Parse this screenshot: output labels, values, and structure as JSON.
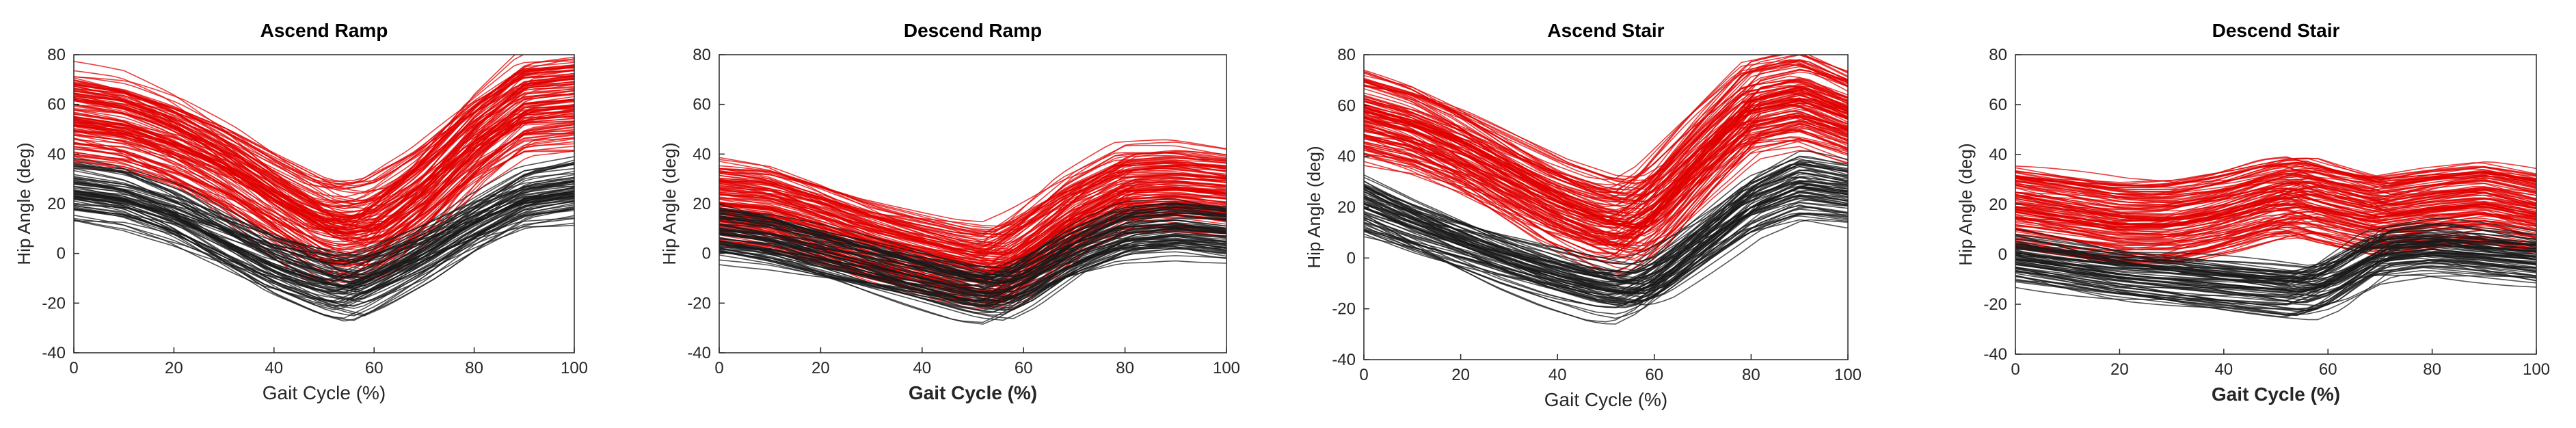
{
  "chart_data": [
    {
      "type": "line",
      "title": "Ascend Ramp",
      "xlabel": "Gait Cycle (%)",
      "ylabel": "Hip Angle (deg)",
      "xlim": [
        0,
        100
      ],
      "ylim": [
        -40,
        80
      ],
      "xticks": [
        0,
        20,
        40,
        60,
        80,
        100
      ],
      "yticks": [
        -40,
        -20,
        0,
        20,
        40,
        60,
        80
      ],
      "grid": false,
      "x": [
        0,
        10,
        20,
        30,
        40,
        50,
        55,
        60,
        70,
        80,
        90,
        100
      ],
      "series": [
        {
          "color": "#e00000",
          "values": [
            55,
            52,
            45,
            35,
            22,
            10,
            8,
            10,
            25,
            45,
            60,
            62
          ]
        },
        {
          "color": "#1a1a1a",
          "values": [
            25,
            22,
            15,
            5,
            -5,
            -12,
            -14,
            -10,
            0,
            12,
            22,
            25
          ]
        }
      ]
    },
    {
      "type": "line",
      "title": "Descend Ramp",
      "xlabel": "Gait Cycle (%)",
      "ylabel": "Hip Angle (deg)",
      "xlim": [
        0,
        100
      ],
      "ylim": [
        -40,
        80
      ],
      "xticks": [
        0,
        20,
        40,
        60,
        80,
        100
      ],
      "yticks": [
        -40,
        -20,
        0,
        20,
        40,
        60,
        80
      ],
      "grid": false,
      "x": [
        0,
        10,
        20,
        30,
        40,
        50,
        55,
        60,
        70,
        80,
        90,
        100
      ],
      "series": [
        {
          "color": "#e00000",
          "values": [
            20,
            18,
            12,
            5,
            0,
            -5,
            -6,
            0,
            15,
            25,
            26,
            24
          ]
        },
        {
          "color": "#1a1a1a",
          "values": [
            8,
            5,
            0,
            -5,
            -10,
            -15,
            -16,
            -12,
            0,
            8,
            10,
            8
          ]
        }
      ]
    },
    {
      "type": "line",
      "title": "Ascend Stair",
      "xlabel": "Gait Cycle (%)",
      "ylabel": "Hip Angle (deg)",
      "xlim": [
        0,
        100
      ],
      "ylim": [
        -40,
        80
      ],
      "xticks": [
        0,
        20,
        40,
        60,
        80,
        100
      ],
      "yticks": [
        -40,
        -20,
        0,
        20,
        40,
        60,
        80
      ],
      "grid": false,
      "x": [
        0,
        10,
        20,
        30,
        40,
        50,
        55,
        60,
        70,
        80,
        90,
        100
      ],
      "series": [
        {
          "color": "#e00000",
          "values": [
            55,
            50,
            42,
            32,
            22,
            15,
            14,
            20,
            40,
            58,
            62,
            55
          ]
        },
        {
          "color": "#1a1a1a",
          "values": [
            20,
            12,
            5,
            -2,
            -8,
            -13,
            -14,
            -10,
            5,
            20,
            28,
            25
          ]
        }
      ]
    },
    {
      "type": "line",
      "title": "Descend Stair",
      "xlabel": "Gait Cycle (%)",
      "ylabel": "Hip Angle (deg)",
      "xlim": [
        0,
        100
      ],
      "ylim": [
        -40,
        80
      ],
      "xticks": [
        0,
        20,
        40,
        60,
        80,
        100
      ],
      "yticks": [
        -40,
        -20,
        0,
        20,
        40,
        60,
        80
      ],
      "grid": false,
      "x": [
        0,
        10,
        20,
        30,
        40,
        50,
        55,
        60,
        70,
        80,
        90,
        100
      ],
      "series": [
        {
          "color": "#e00000",
          "values": [
            18,
            15,
            12,
            12,
            16,
            22,
            23,
            20,
            15,
            18,
            20,
            16
          ]
        },
        {
          "color": "#1a1a1a",
          "values": [
            -2,
            -5,
            -8,
            -10,
            -12,
            -14,
            -15,
            -12,
            0,
            2,
            0,
            -2
          ]
        }
      ]
    }
  ]
}
